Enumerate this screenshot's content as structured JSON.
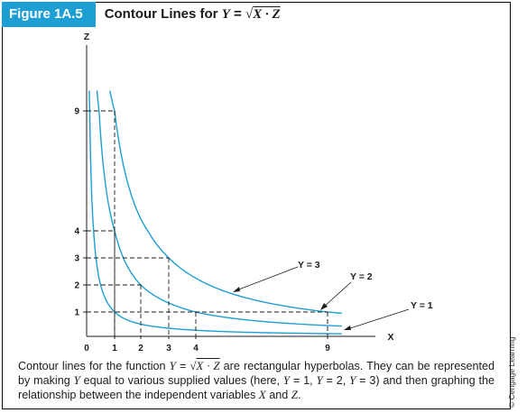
{
  "figure": {
    "badge": "Figure 1A.5",
    "title_prefix": "Contour Lines for ",
    "title_lhs": "Y",
    "title_eq": " = ",
    "title_sqrt": "√",
    "title_radicand": "X · Z"
  },
  "caption": {
    "p1": "Contour lines for the function ",
    "f_lhs": "Y",
    "f_eq": " = ",
    "f_sqrt": "√",
    "f_radicand": "X · Z",
    "p2": " are rectangular hyperbolas. They can be represented by making ",
    "y1": "Y",
    "p3": " equal to various supplied values (here, ",
    "y2": "Y",
    "p4": " = 1, ",
    "y3": "Y",
    "p5": " = 2, ",
    "y4": "Y",
    "p6": " = 3) and then graphing the relationship between the independent variables ",
    "x": "X",
    "p7": " and ",
    "z": "Z",
    "p8": "."
  },
  "credit": "© Cengage Learning",
  "colors": {
    "accent": "#1e9fd4",
    "curve": "#1e9fd4",
    "axis": "#1b1b1b"
  },
  "chart_data": {
    "type": "line",
    "xlabel": "X",
    "ylabel": "Z",
    "x_ticks": [
      "0",
      "1",
      "2",
      "3",
      "4",
      "9"
    ],
    "y_ticks": [
      "1",
      "2",
      "3",
      "4",
      "9"
    ],
    "grid": false,
    "series": [
      {
        "name": "Y = 1",
        "function": "Z = 1/X",
        "x_range": [
          0.1,
          9.5
        ]
      },
      {
        "name": "Y = 2",
        "function": "Z = 4/X",
        "x_range": [
          0.4,
          9.5
        ]
      },
      {
        "name": "Y = 3",
        "function": "Z = 9/X",
        "x_range": [
          0.9,
          9.5
        ]
      }
    ],
    "reference_points": [
      {
        "x": 1,
        "z": 1
      },
      {
        "x": 9,
        "z": 1
      },
      {
        "x": 1,
        "z": 9
      },
      {
        "x": 1,
        "z": 4
      },
      {
        "x": 2,
        "z": 2
      },
      {
        "x": 4,
        "z": 1
      },
      {
        "x": 3,
        "z": 3
      },
      {
        "x": 9,
        "z": 1
      }
    ],
    "annotations": [
      "Y = 3",
      "Y = 2",
      "Y = 1"
    ]
  }
}
